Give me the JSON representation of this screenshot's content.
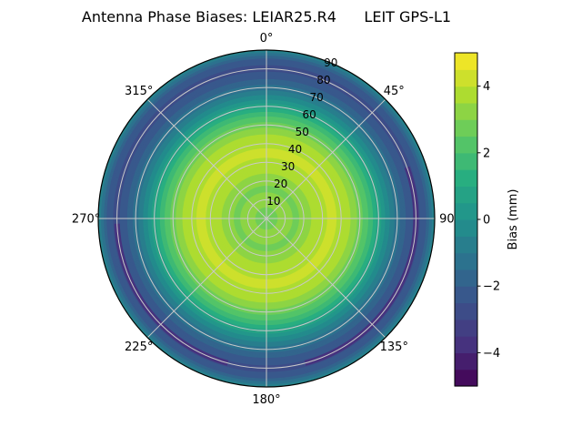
{
  "chart_data": {
    "type": "polar_contour",
    "title": "Antenna Phase Biases: LEIAR25.R4      LEIT GPS-L1",
    "colormap": "viridis",
    "theta_zero_location": "top",
    "theta_direction": "clockwise",
    "theta_tick_labels": [
      "0°",
      "45°",
      "90",
      "135°",
      "180°",
      "225°",
      "270°",
      "315°"
    ],
    "r_tick_labels": [
      "10",
      "20",
      "30",
      "40",
      "50",
      "60",
      "70",
      "80",
      "90"
    ],
    "r_max": 90,
    "r_label_azimuth_deg": 22.5,
    "contour_step_mm": 0.5,
    "colorbar": {
      "label": "Bias (mm)",
      "vmin": -5,
      "vmax": 5,
      "segments": 20,
      "tick_values": [
        -4,
        -2,
        0,
        2,
        4
      ],
      "tick_labels": [
        "−4",
        "−2",
        "0",
        "2",
        "4"
      ]
    },
    "radial_profile": {
      "zenith_deg": [
        0,
        5,
        10,
        15,
        20,
        25,
        30,
        35,
        40,
        45,
        50,
        55,
        60,
        65,
        70,
        75,
        80,
        85,
        88,
        90
      ],
      "bias_mm": [
        2.6,
        2.9,
        3.3,
        2.9,
        3.1,
        3.6,
        3.9,
        4.1,
        3.9,
        3.5,
        2.8,
        1.9,
        0.8,
        -0.3,
        -1.3,
        -2.1,
        -2.7,
        -2.2,
        -1.2,
        -0.3
      ]
    },
    "azimuthal_anomalies": [
      {
        "azimuth_start_deg": 70,
        "azimuth_end_deg": 165,
        "zenith_deg": 80,
        "bias_mm": -3.6
      },
      {
        "azimuth_start_deg": 195,
        "azimuth_end_deg": 268,
        "zenith_deg": 80,
        "bias_mm": -3.6
      }
    ],
    "grid": {
      "visible": true,
      "color": "#c9c9c9"
    }
  }
}
